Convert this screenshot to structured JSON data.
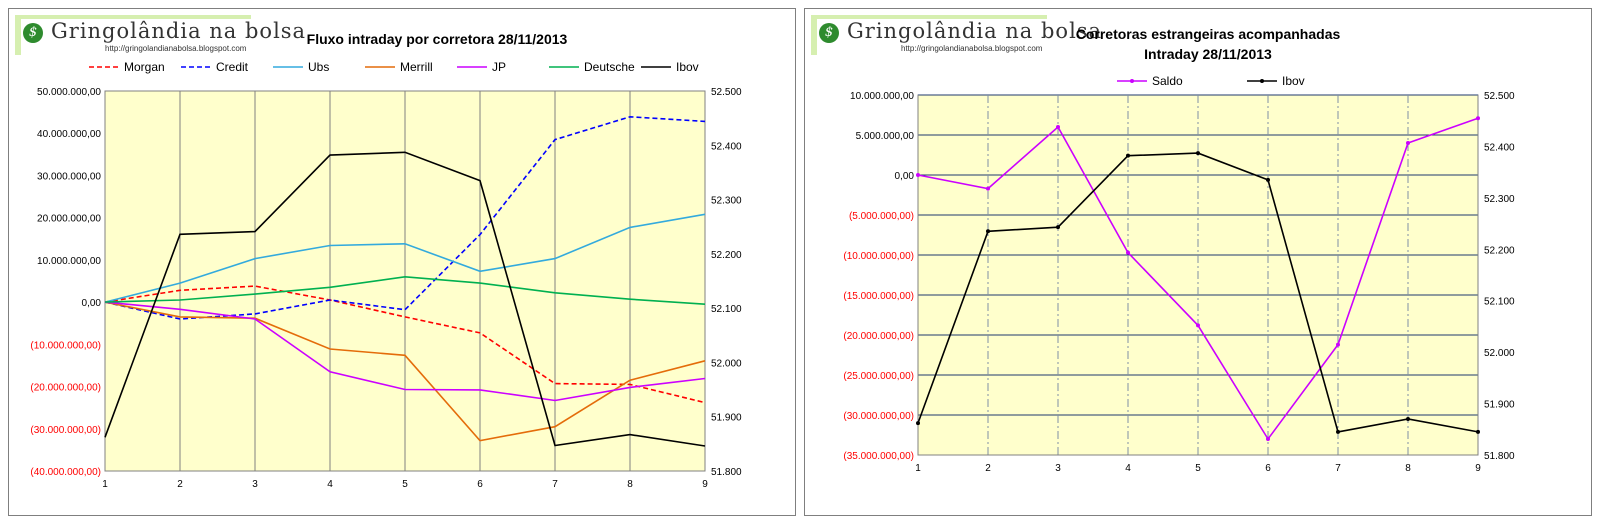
{
  "chart_data": [
    {
      "type": "line",
      "title": "Fluxo intraday por corretora  28/11/2013",
      "logo": {
        "text": "ringolândia na bolsa",
        "initial": "G",
        "url": "http://gringolandianabolsa.blogspot.com"
      },
      "x": [
        1,
        2,
        3,
        4,
        5,
        6,
        7,
        8,
        9
      ],
      "x_tick_labels": [
        "1",
        "2",
        "3",
        "4",
        "5",
        "6",
        "7",
        "8",
        "9"
      ],
      "y_left": {
        "range": [
          -40000000,
          50000000
        ],
        "tick_values": [
          50000000,
          40000000,
          30000000,
          20000000,
          10000000,
          0,
          -10000000,
          -20000000,
          -30000000,
          -40000000
        ],
        "tick_labels": [
          "50.000.000,00",
          "40.000.000,00",
          "30.000.000,00",
          "20.000.000,00",
          "10.000.000,00",
          "0,00",
          "(10.000.000,00)",
          "(20.000.000,00)",
          "(30.000.000,00)",
          "(40.000.000,00)"
        ]
      },
      "y_right": {
        "range": [
          51800,
          52500
        ],
        "tick_values": [
          52500,
          52400,
          52300,
          52200,
          52100,
          52000,
          51900,
          51800
        ],
        "tick_labels": [
          "52.500",
          "52.400",
          "52.300",
          "52.200",
          "52.100",
          "52.000",
          "51.900",
          "51.800"
        ]
      },
      "grid": {
        "vertical": "solid",
        "horizontal": false
      },
      "plot_background": "#ffffcc",
      "legend": "top",
      "series": [
        {
          "name": "Morgan",
          "color": "#ff0000",
          "dash": "dashed",
          "axis": "left",
          "values": [
            0,
            2800000,
            3800000,
            500000,
            -3500000,
            -7300000,
            -19300000,
            -19500000,
            -23800000
          ]
        },
        {
          "name": "Credit",
          "color": "#0000ff",
          "dash": "dashed",
          "axis": "left",
          "values": [
            0,
            -4000000,
            -2800000,
            500000,
            -1800000,
            16000000,
            38500000,
            43900000,
            42800000
          ]
        },
        {
          "name": "Ubs",
          "color": "#33aadd",
          "dash": "solid",
          "axis": "left",
          "values": [
            0,
            4500000,
            10300000,
            13400000,
            13800000,
            7300000,
            10300000,
            17700000,
            20800000
          ]
        },
        {
          "name": "Merrill",
          "color": "#e46c0a",
          "dash": "solid",
          "axis": "left",
          "values": [
            0,
            -3500000,
            -3800000,
            -11100000,
            -12600000,
            -32800000,
            -29500000,
            -18500000,
            -13900000
          ]
        },
        {
          "name": "JP",
          "color": "#cc00ff",
          "dash": "solid",
          "axis": "left",
          "values": [
            0,
            -1700000,
            -4000000,
            -16500000,
            -20700000,
            -20800000,
            -23300000,
            -20200000,
            -18100000
          ]
        },
        {
          "name": "Deutsche",
          "color": "#00b050",
          "dash": "solid",
          "axis": "left",
          "values": [
            0,
            500000,
            1900000,
            3500000,
            6000000,
            4500000,
            2200000,
            700000,
            -500000
          ]
        },
        {
          "name": "Ibov",
          "color": "#000000",
          "dash": "solid",
          "axis": "right",
          "values": [
            51862,
            52236,
            52241,
            52382,
            52387,
            52335,
            51847,
            51867,
            51846
          ]
        }
      ]
    },
    {
      "type": "line",
      "title": "Corretoras estrangeiras acompanhadas",
      "subtitle": "Intraday  28/11/2013",
      "logo": {
        "text": "ringolândia na bolsa",
        "initial": "G",
        "url": "http://gringolandianabolsa.blogspot.com"
      },
      "x": [
        1,
        2,
        3,
        4,
        5,
        6,
        7,
        8,
        9
      ],
      "x_tick_labels": [
        "1",
        "2",
        "3",
        "4",
        "5",
        "6",
        "7",
        "8",
        "9"
      ],
      "y_left": {
        "range": [
          -35000000,
          10000000
        ],
        "tick_values": [
          10000000,
          5000000,
          0,
          -5000000,
          -10000000,
          -15000000,
          -20000000,
          -25000000,
          -30000000,
          -35000000
        ],
        "tick_labels": [
          "10.000.000,00",
          "5.000.000,00",
          "0,00",
          "(5.000.000,00)",
          "(10.000.000,00)",
          "(15.000.000,00)",
          "(20.000.000,00)",
          "(25.000.000,00)",
          "(30.000.000,00)",
          "(35.000.000,00)"
        ]
      },
      "y_right": {
        "range": [
          51800,
          52500
        ],
        "tick_values": [
          52500,
          52400,
          52300,
          52200,
          52100,
          52000,
          51900,
          51800
        ],
        "tick_labels": [
          "52.500",
          "52.400",
          "52.300",
          "52.200",
          "52.100",
          "52.000",
          "51.900",
          "51.800"
        ]
      },
      "grid": {
        "vertical": "dash-dot",
        "horizontal": true
      },
      "plot_background": "#ffffcc",
      "legend": "top",
      "series": [
        {
          "name": "Saldo",
          "color": "#cc00ff",
          "dash": "solid",
          "marker": true,
          "axis": "left",
          "values": [
            0,
            -1700000,
            6000000,
            -9700000,
            -18800000,
            -33000000,
            -21200000,
            4000000,
            7100000
          ]
        },
        {
          "name": "Ibov",
          "color": "#000000",
          "dash": "solid",
          "marker": true,
          "axis": "right",
          "values": [
            51862,
            52235,
            52243,
            52382,
            52387,
            52335,
            51845,
            51870,
            51845
          ]
        }
      ]
    }
  ]
}
